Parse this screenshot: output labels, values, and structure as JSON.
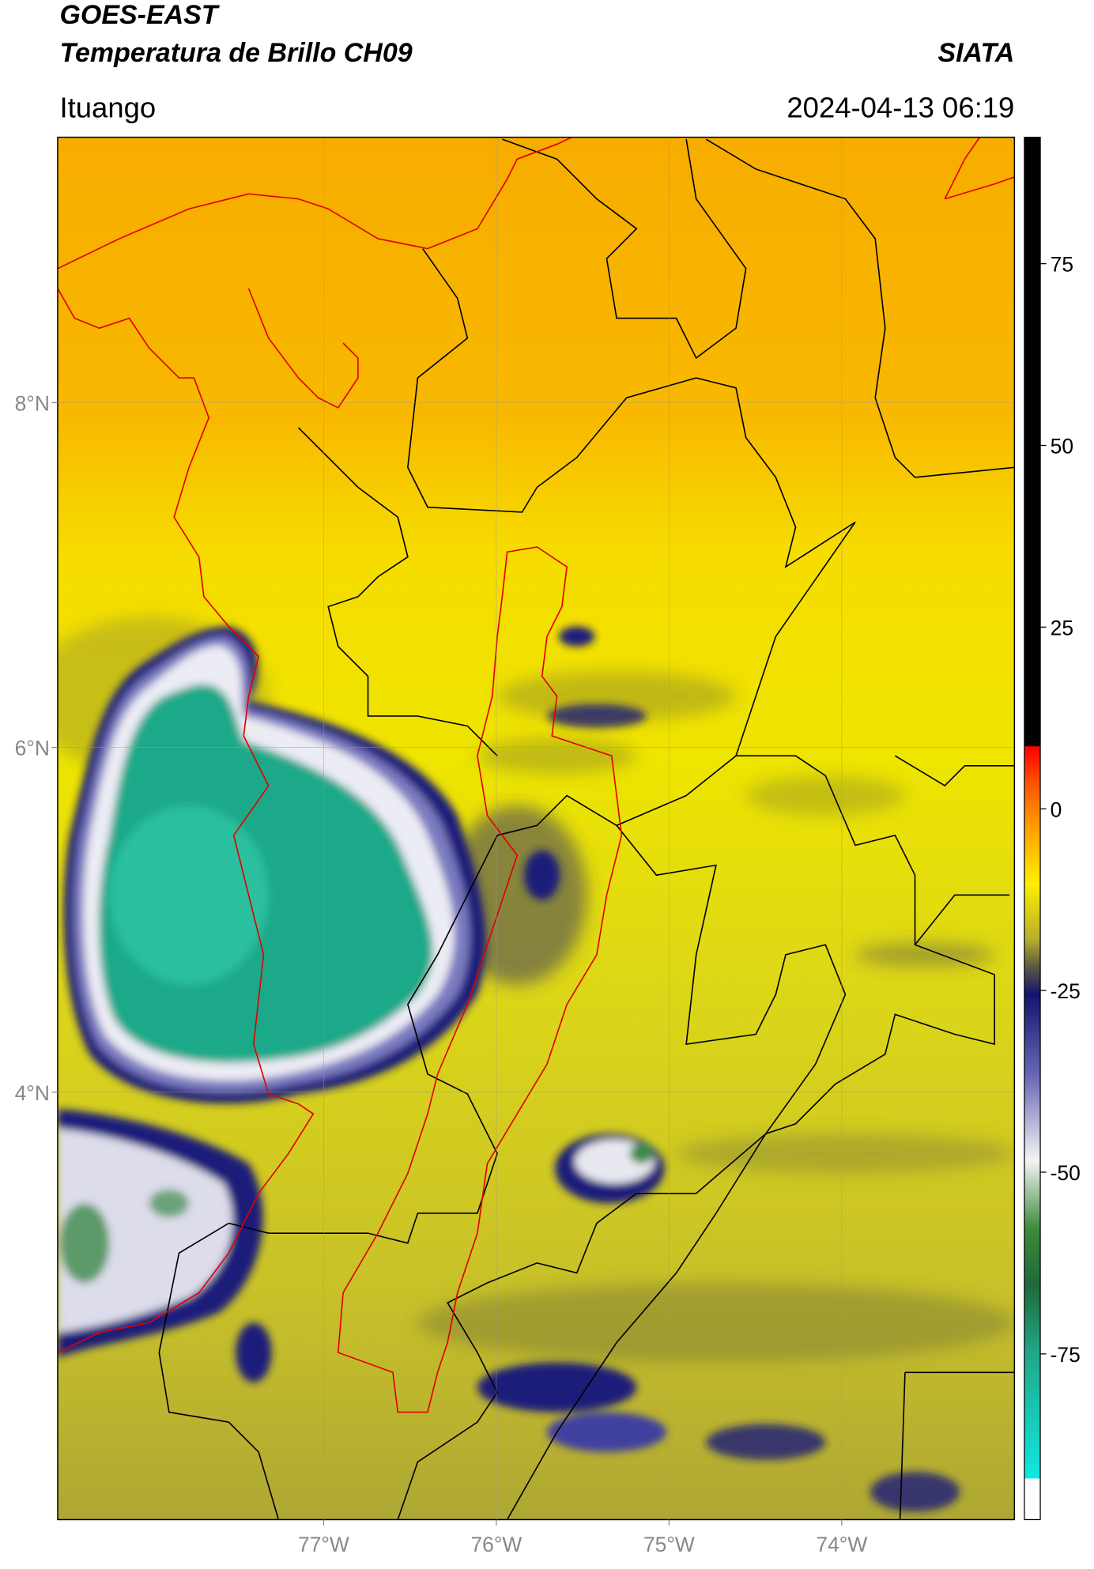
{
  "header": {
    "title": "GOES-EAST",
    "subtitle": "Temperatura de Brillo CH09",
    "agency": "SIATA",
    "location": "Ituango",
    "datetime": "2024-04-13 06:19"
  },
  "chart_data": {
    "type": "map",
    "xlim": [
      -78.54,
      -73.0
    ],
    "ylim": [
      1.52,
      9.54
    ],
    "xticks": [
      {
        "value": -77,
        "label": "77°W"
      },
      {
        "value": -76,
        "label": "76°W"
      },
      {
        "value": -75,
        "label": "75°W"
      },
      {
        "value": -74,
        "label": "74°W"
      }
    ],
    "yticks": [
      {
        "value": 4,
        "label": "4°N"
      },
      {
        "value": 6,
        "label": "6°N"
      },
      {
        "value": 8,
        "label": "8°N"
      }
    ],
    "grid": true,
    "colorbar": {
      "lim": [
        -97.8,
        92.4
      ],
      "ticks": [
        -75,
        -50,
        -25,
        0,
        25,
        50,
        75
      ]
    }
  }
}
